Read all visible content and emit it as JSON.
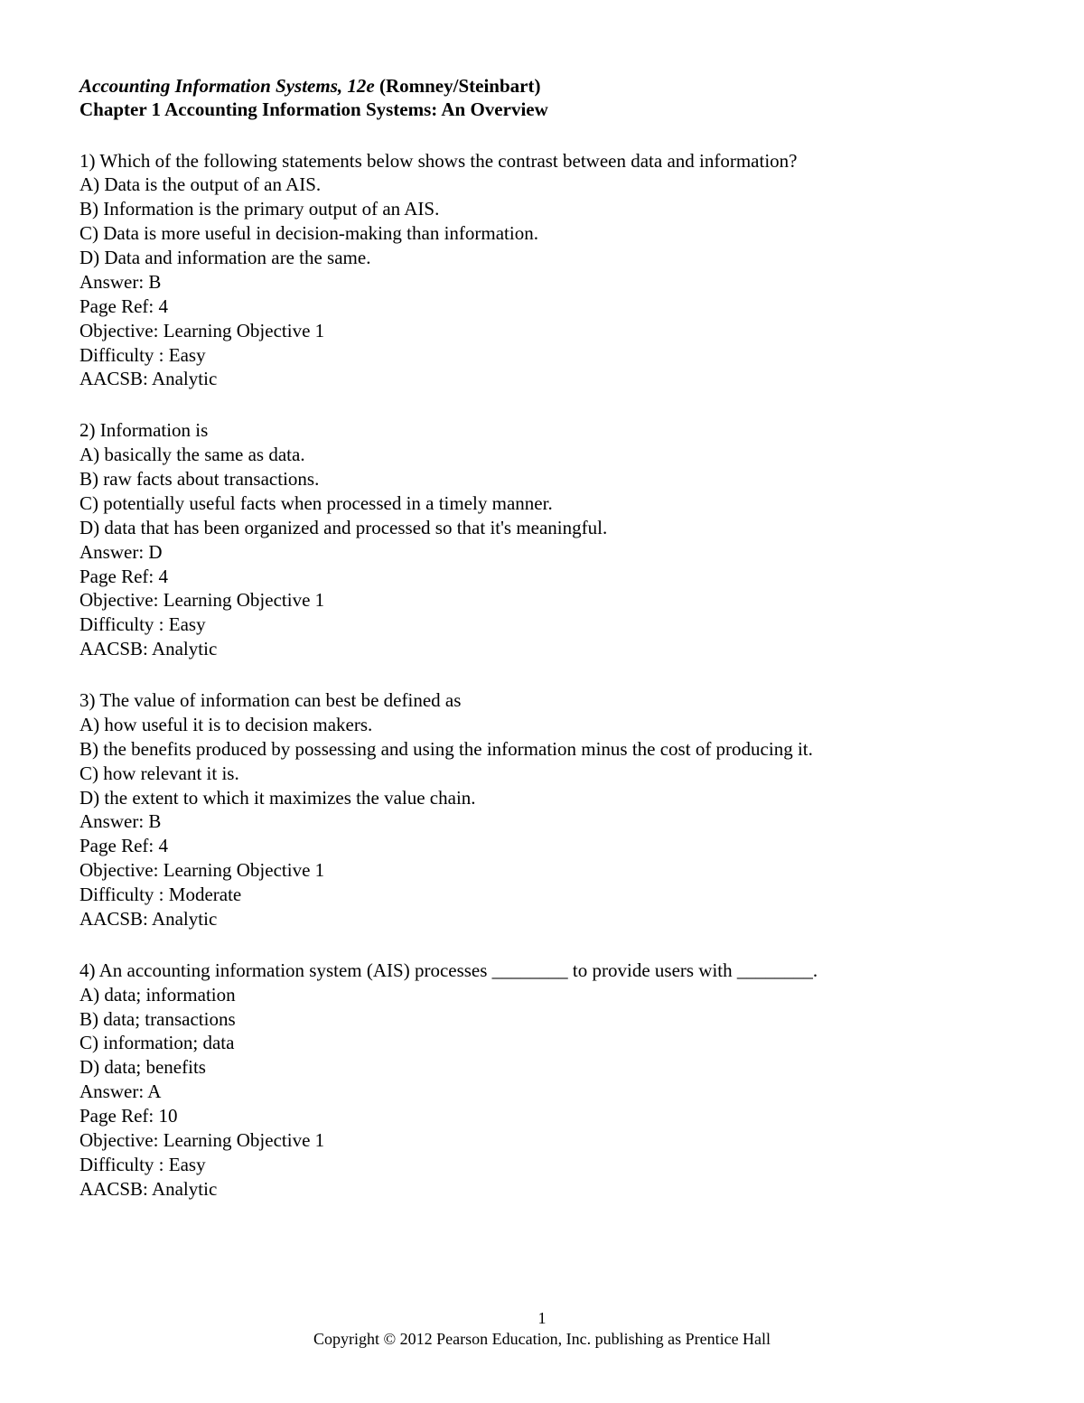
{
  "header": {
    "book_title": "Accounting Information Systems, 12e",
    "authors": " (Romney/Steinbart)",
    "chapter": "Chapter 1   Accounting Information Systems: An Overview"
  },
  "questions": [
    {
      "num": "1)",
      "stem": "Which of the following statements below shows the contrast between data and information?",
      "opts": [
        "A) Data is the output of an AIS.",
        "B) Information is the primary output of an AIS.",
        "C) Data is more useful in decision-making than information.",
        "D) Data and information are the same."
      ],
      "answer": "Answer:  B",
      "pageref": "Page Ref: 4",
      "objective": "Objective:  Learning Objective 1",
      "difficulty": "Difficulty :  Easy",
      "aacsb": "AACSB:  Analytic"
    },
    {
      "num": "2)",
      "stem": "Information is",
      "opts": [
        "A) basically the same as data.",
        "B) raw facts about transactions.",
        "C) potentially useful facts when processed in a timely manner.",
        "D) data that has been organized and processed so that it's meaningful."
      ],
      "answer": "Answer:  D",
      "pageref": "Page Ref: 4",
      "objective": "Objective:  Learning Objective 1",
      "difficulty": "Difficulty :  Easy",
      "aacsb": "AACSB:  Analytic"
    },
    {
      "num": "3)",
      "stem": "The value of information can best be defined as",
      "opts": [
        "A) how useful it is to decision makers.",
        "B) the benefits produced by possessing and using the information minus the cost of producing it.",
        "C) how relevant it is.",
        "D) the extent to which it maximizes the value chain."
      ],
      "answer": "Answer:  B",
      "pageref": "Page Ref: 4",
      "objective": "Objective:  Learning Objective 1",
      "difficulty": "Difficulty :  Moderate",
      "aacsb": "AACSB:  Analytic"
    },
    {
      "num": "4)",
      "stem": "An accounting information system (AIS) processes ________ to provide users with ________.",
      "opts": [
        "A) data; information",
        "B) data; transactions",
        "C) information; data",
        "D) data; benefits"
      ],
      "answer": "Answer:  A",
      "pageref": "Page Ref: 10",
      "objective": "Objective:  Learning Objective 1",
      "difficulty": "Difficulty :  Easy",
      "aacsb": "AACSB:  Analytic"
    }
  ],
  "footer": {
    "page_number": "1",
    "copyright": "Copyright © 2012 Pearson Education, Inc. publishing as Prentice Hall"
  }
}
